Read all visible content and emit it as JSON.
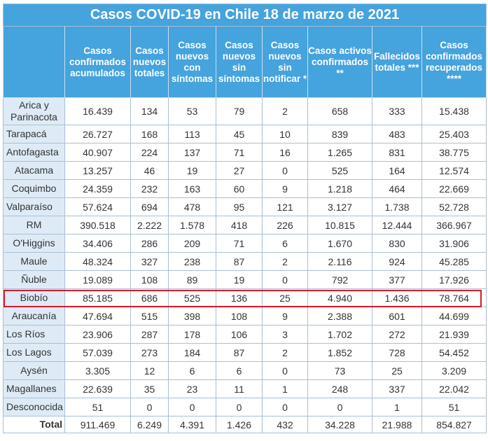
{
  "title": "Casos COVID-19 en Chile 18 de marzo de 2021",
  "headers": [
    "",
    "Casos confirmados acumulados",
    "Casos nuevos totales",
    "Casos nuevos con síntomas",
    "Casos nuevos sin síntomas",
    "Casos nuevos sin notificar *",
    "Casos activos confirmados **",
    "Fallecidos totales ***",
    "Casos confirmados recuperados ****"
  ],
  "rows": [
    [
      "Arica y Parinacota",
      "16.439",
      "134",
      "53",
      "79",
      "2",
      "658",
      "333",
      "15.438"
    ],
    [
      "Tarapacá",
      "26.727",
      "168",
      "113",
      "45",
      "10",
      "839",
      "483",
      "25.403"
    ],
    [
      "Antofagasta",
      "40.907",
      "224",
      "137",
      "71",
      "16",
      "1.265",
      "831",
      "38.775"
    ],
    [
      "Atacama",
      "13.257",
      "46",
      "19",
      "27",
      "0",
      "525",
      "164",
      "12.574"
    ],
    [
      "Coquimbo",
      "24.359",
      "232",
      "163",
      "60",
      "9",
      "1.218",
      "464",
      "22.669"
    ],
    [
      "Valparaíso",
      "57.624",
      "694",
      "478",
      "95",
      "121",
      "3.127",
      "1.738",
      "52.728"
    ],
    [
      "RM",
      "390.518",
      "2.222",
      "1.578",
      "418",
      "226",
      "10.815",
      "12.444",
      "366.967"
    ],
    [
      "O'Higgins",
      "34.406",
      "286",
      "209",
      "71",
      "6",
      "1.670",
      "830",
      "31.906"
    ],
    [
      "Maule",
      "48.324",
      "327",
      "238",
      "87",
      "2",
      "2.116",
      "924",
      "45.285"
    ],
    [
      "Ñuble",
      "19.089",
      "108",
      "89",
      "19",
      "0",
      "792",
      "377",
      "17.926"
    ],
    [
      "Biobío",
      "85.185",
      "686",
      "525",
      "136",
      "25",
      "4.940",
      "1.436",
      "78.764"
    ],
    [
      "Araucanía",
      "47.694",
      "515",
      "398",
      "108",
      "9",
      "2.388",
      "601",
      "44.699"
    ],
    [
      "Los Ríos",
      "23.906",
      "287",
      "178",
      "106",
      "3",
      "1.702",
      "272",
      "21.939"
    ],
    [
      "Los Lagos",
      "57.039",
      "273",
      "184",
      "87",
      "2",
      "1.852",
      "728",
      "54.452"
    ],
    [
      "Aysén",
      "3.305",
      "12",
      "6",
      "6",
      "0",
      "73",
      "25",
      "3.209"
    ],
    [
      "Magallanes",
      "22.639",
      "35",
      "23",
      "11",
      "1",
      "248",
      "337",
      "22.042"
    ],
    [
      "Desconocida",
      "51",
      "0",
      "0",
      "0",
      "0",
      "0",
      "1",
      "51"
    ]
  ],
  "total": [
    "Total",
    "911.469",
    "6.249",
    "4.391",
    "1.426",
    "432",
    "34.228",
    "21.988",
    "854.827"
  ],
  "highlighted_region": "Biobío",
  "colors": {
    "header_bg": "#45a3dd",
    "region_bg": "#deebf6",
    "highlight_border": "#d7192a"
  }
}
